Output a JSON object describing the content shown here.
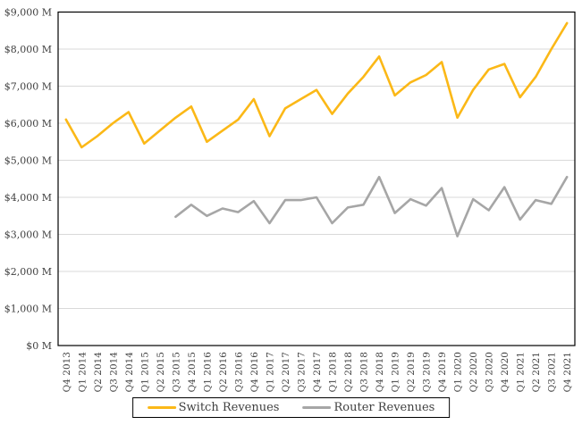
{
  "chart_data": {
    "type": "line",
    "title": "",
    "xlabel": "",
    "ylabel": "",
    "categories": [
      "Q4 2013",
      "Q1 2014",
      "Q2 2014",
      "Q3 2014",
      "Q4 2014",
      "Q1 2015",
      "Q2 2015",
      "Q3 2015",
      "Q4 2015",
      "Q1 2016",
      "Q2 2016",
      "Q3 2016",
      "Q4 2016",
      "Q1 2017",
      "Q2 2017",
      "Q3 2017",
      "Q4 2017",
      "Q1 2018",
      "Q2 2018",
      "Q3 2018",
      "Q4 2018",
      "Q1 2019",
      "Q2 2019",
      "Q3 2019",
      "Q4 2019",
      "Q1 2020",
      "Q2 2020",
      "Q3 2020",
      "Q4 2020",
      "Q1 2021",
      "Q2 2021",
      "Q3 2021",
      "Q4 2021"
    ],
    "series": [
      {
        "name": "Switch Revenues",
        "color": "#FBB817",
        "values": [
          6100,
          5350,
          5650,
          6000,
          6300,
          5450,
          5800,
          6150,
          6450,
          5500,
          5800,
          6100,
          6650,
          5650,
          6400,
          6650,
          6900,
          6250,
          6800,
          7250,
          7800,
          6750,
          7100,
          7300,
          7650,
          6150,
          6900,
          7450,
          7600,
          6700,
          7250,
          8000,
          8700
        ]
      },
      {
        "name": "Router Revenues",
        "color": "#A6A6A6",
        "values": [
          null,
          null,
          null,
          null,
          null,
          null,
          null,
          3475,
          3800,
          3500,
          3700,
          3600,
          3900,
          3300,
          3925,
          3925,
          4000,
          3300,
          3725,
          3800,
          4550,
          3575,
          3950,
          3775,
          4250,
          2950,
          3950,
          3650,
          4275,
          3400,
          3925,
          3825,
          4550
        ]
      }
    ],
    "ylim": [
      0,
      9000
    ],
    "ytick_step": 1000,
    "ytick_labels": [
      "$0 M",
      "$1,000 M",
      "$2,000 M",
      "$3,000 M",
      "$4,000 M",
      "$5,000 M",
      "$6,000 M",
      "$7,000 M",
      "$8,000 M",
      "$9,000 M"
    ],
    "grid": "horizontal",
    "legend_position": "bottom-center"
  },
  "styles": {
    "background": "#FFFFFF",
    "grid_color": "#D9D9D9",
    "border_color": "#000000",
    "text_color": "#404040"
  }
}
